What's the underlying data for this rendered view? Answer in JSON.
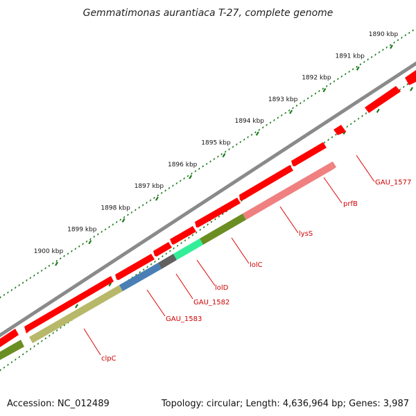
{
  "title": "Gemmatimonas aurantiaca T-27, complete genome",
  "footer": {
    "accession": "Accession: NC_012489",
    "summary": "Topology: circular; Length: 4,636,964 bp; Genes: 3,987"
  },
  "colors": {
    "backbone": "#7a7a7a",
    "tick": "#1a7a1a",
    "label_line": "#dd0000",
    "label_text": "#cc0000"
  },
  "ticks": [
    {
      "label": "1890 kbp"
    },
    {
      "label": "1891 kbp"
    },
    {
      "label": "1892 kbp"
    },
    {
      "label": "1893 kbp"
    },
    {
      "label": "1894 kbp"
    },
    {
      "label": "1895 kbp"
    },
    {
      "label": "1896 kbp"
    },
    {
      "label": "1897 kbp"
    },
    {
      "label": "1898 kbp"
    },
    {
      "label": "1899 kbp"
    },
    {
      "label": "1900 kbp"
    }
  ],
  "genes": [
    {
      "name": "GAU_1577"
    },
    {
      "name": "prfB"
    },
    {
      "name": "lysS"
    },
    {
      "name": "lolC"
    },
    {
      "name": "lolD"
    },
    {
      "name": "GAU_1582"
    },
    {
      "name": "GAU_1583"
    },
    {
      "name": "clpC"
    }
  ]
}
